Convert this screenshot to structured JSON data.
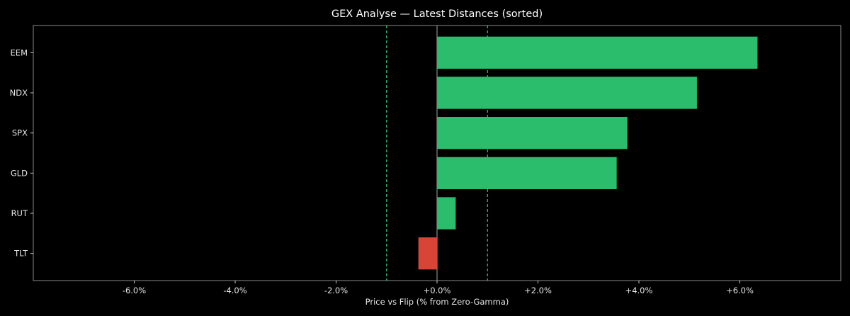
{
  "chart_data": {
    "type": "bar",
    "orientation": "horizontal",
    "title": "GEX Analyse — Latest Distances (sorted)",
    "xlabel": "Price vs Flip (% from Zero-Gamma)",
    "ylabel": "",
    "categories": [
      "EEM",
      "NDX",
      "SPX",
      "GLD",
      "RUT",
      "TLT"
    ],
    "values": [
      6.35,
      5.15,
      3.77,
      3.56,
      0.37,
      -0.37
    ],
    "xlim": [
      -8.0,
      8.0
    ],
    "x_ticks": [
      -6,
      -4,
      -2,
      0,
      2,
      4,
      6
    ],
    "x_tick_labels": [
      "-6.0%",
      "-4.0%",
      "-2.0%",
      "+0.0%",
      "+2.0%",
      "+4.0%",
      "+6.0%"
    ],
    "reference_lines": [
      {
        "x": -1.0,
        "style": "dashed",
        "color": "#2ecc71"
      },
      {
        "x": 1.0,
        "style": "dashed",
        "color": "#2ecc71"
      },
      {
        "x": 0.0,
        "style": "solid",
        "color": "#888888"
      }
    ],
    "colors": {
      "positive": "#2bbd6b",
      "negative": "#d94436",
      "background": "#000000",
      "frame": "#8a8a8a"
    },
    "grid": false
  }
}
